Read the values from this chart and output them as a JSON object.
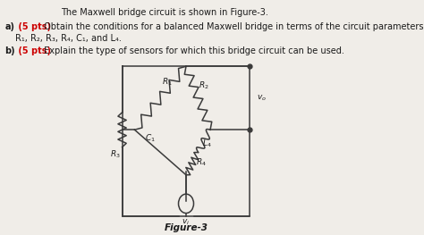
{
  "bg_color": "#f0ede8",
  "title_text": "The Maxwell bridge circuit is shown in Figure-3.",
  "part_a_label": "a)",
  "part_a_pts": " (5 pts)",
  "part_a_text": " Obtain the conditions for a balanced Maxwell bridge in terms of the circuit parameters",
  "part_a_text2": "R₁, R₂, R₃, R₄, C₁, and L₄.",
  "part_b_label": "b)",
  "part_b_pts": " (5 pts)",
  "part_b_text": " Explain the type of sensors for which this bridge circuit can be used.",
  "figure_label": "Figure-3",
  "text_color": "#1a1a1a",
  "red_color": "#cc0000",
  "line_color": "#3a3a3a"
}
